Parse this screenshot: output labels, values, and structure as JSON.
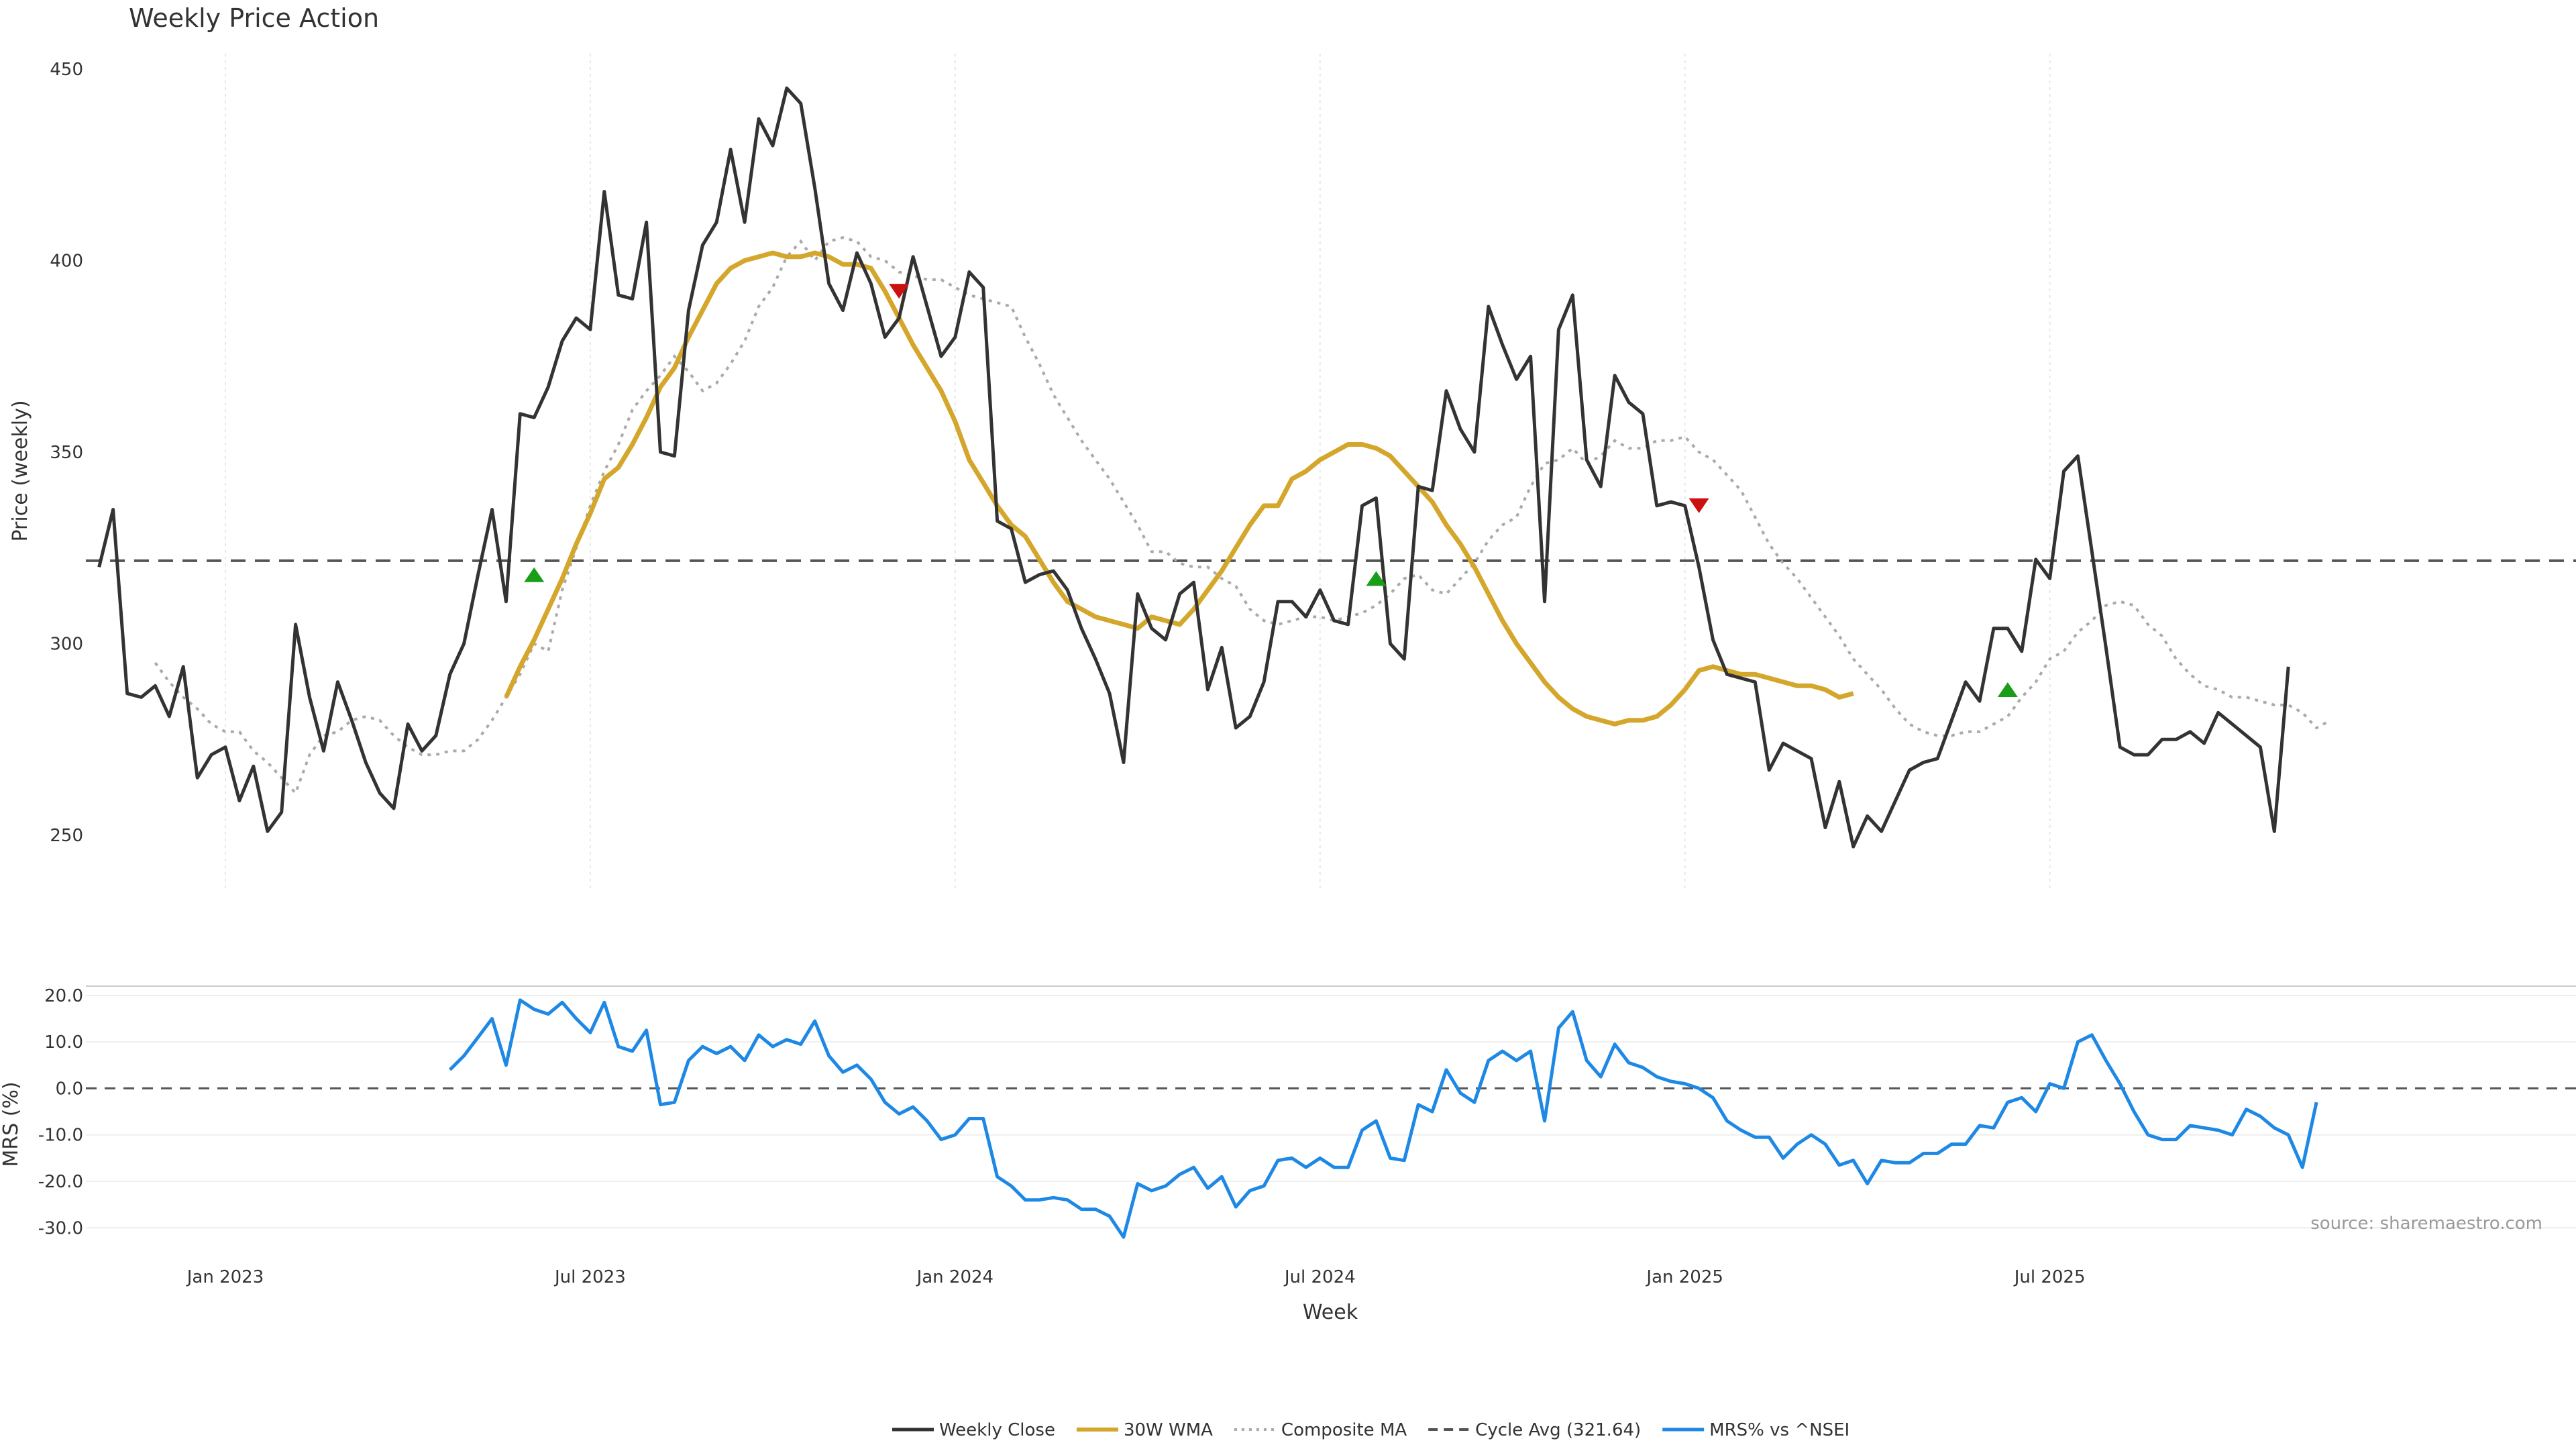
{
  "chart_data": {
    "type": "line",
    "title": "Weekly Price Action",
    "xlabel": "Week",
    "source": "source: sharemaestro.com",
    "colors": {
      "close": "#333333",
      "wma": "#d4a72c",
      "composite": "#aaaaaa",
      "cycle": "#555555",
      "mrs": "#1e88e5",
      "buy": "#1a9e1a",
      "sell": "#cc1111"
    },
    "x_ticks": [
      {
        "label": "Jan 2023",
        "week": 0
      },
      {
        "label": "Jul 2023",
        "week": 26
      },
      {
        "label": "Jan 2024",
        "week": 52
      },
      {
        "label": "Jul 2024",
        "week": 78
      },
      {
        "label": "Jan 2025",
        "week": 104
      },
      {
        "label": "Jul 2025",
        "week": 130
      }
    ],
    "price_panel": {
      "ylabel": "Price (weekly)",
      "yrange": [
        236,
        454
      ],
      "yticks": [
        250,
        300,
        350,
        400,
        450
      ],
      "cycle_avg": 321.64,
      "series": {
        "close": {
          "name": "Weekly Close",
          "start_week": -9,
          "values": [
            320,
            335,
            287,
            286,
            289,
            281,
            294,
            265,
            271,
            273,
            259,
            268,
            251,
            256,
            305,
            286,
            272,
            290,
            280,
            269,
            261,
            257,
            279,
            272,
            276,
            292,
            300,
            318,
            335,
            311,
            360,
            359,
            367,
            379,
            385,
            382,
            418,
            391,
            390,
            410,
            350,
            349,
            387,
            404,
            410,
            429,
            410,
            437,
            430,
            445,
            441,
            419,
            394,
            387,
            402,
            394,
            380,
            385,
            401,
            388,
            375,
            380,
            397,
            393,
            332,
            330,
            316,
            318,
            319,
            314,
            304,
            296,
            287,
            269,
            313,
            304,
            301,
            313,
            316,
            288,
            299,
            278,
            281,
            290,
            311,
            311,
            307,
            314,
            306,
            305,
            336,
            338,
            300,
            296,
            341,
            340,
            366,
            356,
            350,
            388,
            378,
            369,
            375,
            311,
            382,
            391,
            348,
            341,
            370,
            363,
            360,
            336,
            337,
            336,
            320,
            301,
            292,
            291,
            290,
            267,
            274,
            272,
            270,
            252,
            264,
            247,
            255,
            251,
            259,
            267,
            269,
            270,
            280,
            290,
            285,
            304,
            304,
            298,
            322,
            317,
            345,
            349,
            324,
            299,
            273,
            271,
            271,
            275,
            275,
            277,
            274,
            282,
            279,
            276,
            273,
            251,
            294
          ]
        },
        "wma": {
          "name": "30W WMA",
          "start_week": 20,
          "values": [
            286,
            294,
            301,
            309,
            317,
            326,
            334,
            343,
            346,
            352,
            359,
            367,
            372,
            380,
            387,
            394,
            398,
            400,
            401,
            402,
            401,
            401,
            402,
            401,
            399,
            399,
            398,
            392,
            385,
            378,
            372,
            366,
            358,
            348,
            342,
            336,
            331,
            328,
            322,
            316,
            311,
            309,
            307,
            306,
            305,
            304,
            307,
            306,
            305,
            309,
            314,
            319,
            325,
            331,
            336,
            336,
            343,
            345,
            348,
            350,
            352,
            352,
            351,
            349,
            345,
            341,
            337,
            331,
            326,
            320,
            313,
            306,
            300,
            295,
            290,
            286,
            283,
            281,
            280,
            279,
            280,
            280,
            281,
            284,
            288,
            293,
            294,
            293,
            292,
            292,
            291,
            290,
            289,
            289,
            288,
            286,
            287
          ]
        },
        "composite": {
          "name": "Composite MA",
          "start_week": -5,
          "values": [
            295,
            290,
            286,
            283,
            279,
            277,
            277,
            272,
            269,
            265,
            261,
            271,
            276,
            277,
            280,
            281,
            280,
            276,
            273,
            271,
            271,
            272,
            272,
            275,
            280,
            286,
            292,
            300,
            298,
            314,
            325,
            336,
            345,
            352,
            361,
            366,
            370,
            375,
            371,
            366,
            368,
            373,
            379,
            388,
            393,
            401,
            405,
            400,
            405,
            406,
            405,
            401,
            400,
            397,
            396,
            395,
            395,
            393,
            391,
            390,
            389,
            388,
            380,
            373,
            365,
            359,
            353,
            348,
            343,
            337,
            331,
            324,
            324,
            321,
            320,
            320,
            317,
            315,
            309,
            306,
            305,
            306,
            307,
            307,
            306,
            307,
            308,
            310,
            313,
            317,
            318,
            314,
            313,
            317,
            321,
            327,
            331,
            333,
            341,
            347,
            348,
            351,
            347,
            349,
            353,
            351,
            351,
            353,
            353,
            354,
            350,
            348,
            344,
            340,
            333,
            326,
            321,
            317,
            312,
            307,
            302,
            296,
            292,
            288,
            283,
            279,
            277,
            276,
            276,
            277,
            277,
            279,
            281,
            286,
            290,
            296,
            298,
            303,
            306,
            310,
            311,
            310,
            305,
            302,
            296,
            292,
            289,
            288,
            286,
            286,
            285,
            284,
            284,
            282,
            278,
            280
          ]
        },
        "mrs": {
          "name": "MRS% vs ^NSEI",
          "start_week": 16,
          "values": [
            4,
            7,
            11,
            15,
            5,
            19,
            17,
            16,
            18.5,
            15,
            12,
            18.5,
            9,
            8,
            12.5,
            -3.5,
            -3,
            6,
            9,
            7.5,
            9,
            6,
            11.5,
            9,
            10.5,
            9.5,
            14.5,
            7,
            3.5,
            5,
            2,
            -3,
            -5.5,
            -4,
            -7,
            -11,
            -10,
            -6.5,
            -6.5,
            -19,
            -21,
            -24,
            -24,
            -23.5,
            -24,
            -26,
            -26,
            -27.5,
            -32,
            -20.5,
            -22,
            -21,
            -18.5,
            -17,
            -21.5,
            -19,
            -25.5,
            -22,
            -21,
            -15.5,
            -15,
            -17,
            -15,
            -17,
            -17,
            -9,
            -7,
            -15,
            -15.5,
            -3.5,
            -5,
            4,
            -1,
            -3,
            6,
            8,
            6,
            8,
            -7,
            13,
            16.5,
            6,
            2.5,
            9.5,
            5.5,
            4.5,
            2.5,
            1.5,
            1,
            0,
            -2,
            -7,
            -9,
            -10.5,
            -10.5,
            -15,
            -12,
            -10,
            -12,
            -16.5,
            -15.5,
            -20.5,
            -15.5,
            -16,
            -16,
            -14,
            -14,
            -12,
            -12,
            -8,
            -8.5,
            -3,
            -2,
            -5,
            1,
            0,
            10,
            11.5,
            6,
            1,
            -5,
            -10,
            -11,
            -11,
            -8,
            -8.5,
            -9,
            -10,
            -4.5,
            -6,
            -8.5,
            -10,
            -17,
            -3
          ]
        }
      },
      "signals": [
        {
          "type": "buy",
          "week": 22,
          "price": 318
        },
        {
          "type": "sell",
          "week": 48,
          "price": 392
        },
        {
          "type": "buy",
          "week": 82,
          "price": 317
        },
        {
          "type": "sell",
          "week": 105,
          "price": 336
        },
        {
          "type": "buy",
          "week": 127,
          "price": 288
        }
      ]
    },
    "mrs_panel": {
      "ylabel": "MRS (%)",
      "yrange": [
        -34,
        22
      ],
      "yticks": [
        20,
        10,
        0,
        -10,
        -20,
        -30
      ],
      "ytick_labels": [
        "20.0",
        "10.0",
        "0.0",
        "-10.0",
        "-20.0",
        "-30.0"
      ]
    },
    "legend": [
      {
        "key": "close",
        "label": "Weekly Close",
        "style": "solid"
      },
      {
        "key": "wma",
        "label": "30W WMA",
        "style": "solid"
      },
      {
        "key": "composite",
        "label": "Composite MA",
        "style": "dotted"
      },
      {
        "key": "cycle",
        "label": "Cycle Avg (321.64)",
        "style": "dashed"
      },
      {
        "key": "mrs",
        "label": "MRS% vs ^NSEI",
        "style": "solid"
      }
    ]
  }
}
